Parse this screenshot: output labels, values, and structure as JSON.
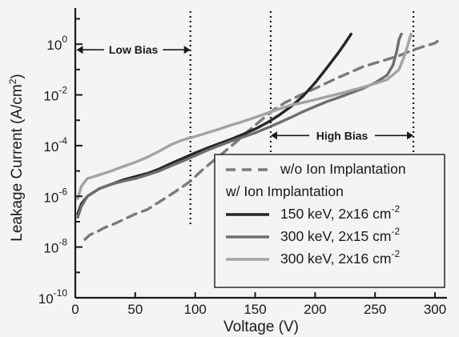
{
  "chart_data": {
    "type": "line",
    "title": "",
    "xlabel": "Voltage (V)",
    "ylabel": "Leakage Current (A/cm",
    "ylabel_sup": "2",
    "ylabel_tail": ")",
    "xlim": [
      0,
      310
    ],
    "ylim_exponent": [
      -10,
      1.3
    ],
    "y_log_scale": true,
    "x_ticks": [
      0,
      50,
      100,
      150,
      200,
      250,
      300
    ],
    "x_tick_labels": [
      "0",
      "50",
      "100",
      "150",
      "200",
      "250",
      "300"
    ],
    "y_ticks": [
      {
        "base": "10",
        "exp": "0",
        "value": 1
      },
      {
        "base": "10",
        "exp": "-2",
        "value": 0.01
      },
      {
        "base": "10",
        "exp": "-4",
        "value": 0.0001
      },
      {
        "base": "10",
        "exp": "-6",
        "value": 1e-06
      },
      {
        "base": "10",
        "exp": "-8",
        "value": 1e-08
      },
      {
        "base": "10",
        "exp": "-10",
        "value": 1e-10
      }
    ],
    "legend": {
      "placement": "bottom-right",
      "header": "w/ Ion Implantation",
      "entries": [
        {
          "series": 0,
          "text": "w/o Ion Implantation"
        },
        {
          "series": 1,
          "text": "150 keV, 2x16 cm",
          "sup": "-2"
        },
        {
          "series": 2,
          "text": "300 keV, 2x15 cm",
          "sup": "-2"
        },
        {
          "series": 3,
          "text": "300 keV, 2x16 cm",
          "sup": "-2"
        }
      ]
    },
    "annotations": [
      {
        "text": "Low Bias",
        "from_x": 1,
        "to_x": 96,
        "y": 0.6
      },
      {
        "text": "High Bias",
        "from_x": 163,
        "to_x": 282,
        "y": 0.00025
      }
    ],
    "vlines": [
      {
        "x": 96,
        "y_range": [
          7e-08,
          200
        ]
      },
      {
        "x": 163,
        "y_range": [
          1e-05,
          200
        ]
      },
      {
        "x": 282,
        "y_range": [
          7e-07,
          200
        ]
      }
    ],
    "series": [
      {
        "name": "w/o Ion Implantation",
        "color": "#7a7a7a",
        "dash": true,
        "x": [
          8,
          12,
          18,
          25,
          32,
          40,
          50,
          60,
          70,
          80,
          90,
          96,
          105,
          115,
          125,
          135,
          145,
          155,
          165,
          175,
          190,
          200,
          210,
          220,
          230,
          240,
          250,
          260,
          270,
          280,
          290,
          300,
          302
        ],
        "y": [
          2e-08,
          3e-08,
          4e-08,
          6e-08,
          8e-08,
          1.2e-07,
          2e-07,
          3e-07,
          6e-07,
          1.2e-06,
          2.5e-06,
          4e-06,
          1e-05,
          2.5e-05,
          6e-05,
          0.00015,
          0.0004,
          0.001,
          0.0025,
          0.005,
          0.011,
          0.018,
          0.03,
          0.05,
          0.08,
          0.13,
          0.18,
          0.25,
          0.35,
          0.55,
          0.8,
          1.1,
          1.3
        ]
      },
      {
        "name": "150 keV, 2x16 cm-2",
        "color": "#262626",
        "dash": false,
        "x": [
          2,
          5,
          10,
          20,
          30,
          40,
          50,
          60,
          70,
          80,
          90,
          100,
          110,
          120,
          130,
          140,
          150,
          160,
          170,
          180,
          190,
          200,
          210,
          220,
          225,
          230
        ],
        "y": [
          2e-07,
          5e-07,
          1e-06,
          2e-06,
          3e-06,
          4.5e-06,
          6e-06,
          8e-06,
          1.2e-05,
          2e-05,
          3.2e-05,
          5.2e-05,
          8e-05,
          0.00012,
          0.00018,
          0.00028,
          0.00045,
          0.0008,
          0.0016,
          0.0035,
          0.009,
          0.03,
          0.12,
          0.5,
          1.1,
          2.5
        ]
      },
      {
        "name": "300 keV, 2x15 cm-2",
        "color": "#6e6e6e",
        "dash": false,
        "x": [
          2,
          5,
          10,
          20,
          30,
          40,
          50,
          60,
          70,
          80,
          90,
          100,
          110,
          120,
          130,
          140,
          150,
          160,
          170,
          180,
          190,
          200,
          210,
          220,
          230,
          240,
          250,
          260,
          265,
          268,
          270,
          272
        ],
        "y": [
          1.5e-07,
          4e-07,
          1e-06,
          2e-06,
          3e-06,
          4e-06,
          5e-06,
          7e-06,
          1e-05,
          1.6e-05,
          2.5e-05,
          4e-05,
          6.5e-05,
          0.0001,
          0.00015,
          0.00022,
          0.00032,
          0.0005,
          0.0008,
          0.0013,
          0.0022,
          0.0035,
          0.0055,
          0.008,
          0.012,
          0.018,
          0.03,
          0.06,
          0.15,
          0.5,
          1.5,
          2.5
        ]
      },
      {
        "name": "300 keV, 2x16 cm-2",
        "color": "#a3a3a3",
        "dash": false,
        "x": [
          2,
          5,
          10,
          20,
          30,
          40,
          50,
          60,
          70,
          80,
          90,
          100,
          110,
          120,
          130,
          140,
          150,
          160,
          170,
          180,
          190,
          200,
          210,
          220,
          230,
          240,
          250,
          260,
          270,
          275,
          278,
          280
        ],
        "y": [
          8e-07,
          2.5e-06,
          5e-06,
          7e-06,
          1e-05,
          1.5e-05,
          2.2e-05,
          3.5e-05,
          6e-05,
          0.00011,
          0.00017,
          0.00023,
          0.00032,
          0.00045,
          0.00065,
          0.0009,
          0.0013,
          0.0019,
          0.0028,
          0.004,
          0.005,
          0.0065,
          0.0085,
          0.011,
          0.015,
          0.02,
          0.028,
          0.04,
          0.1,
          0.4,
          1.2,
          2.5
        ]
      }
    ]
  }
}
